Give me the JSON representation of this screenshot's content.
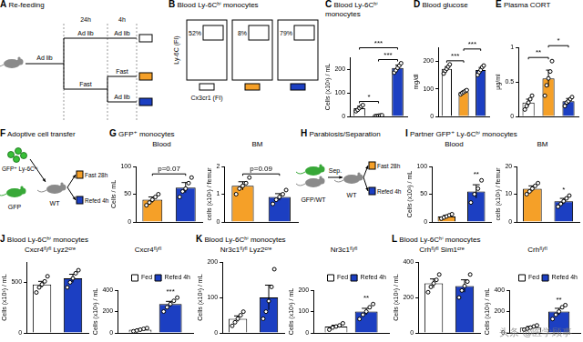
{
  "diagrams": {
    "A": {
      "panel": "A",
      "title": "Re-feeding",
      "times": [
        "24h",
        "4h"
      ],
      "start": "Ad lib",
      "branches": [
        {
          "label": "Ad lib",
          "next": [
            {
              "label": "Ad lib",
              "color": "#ffffff"
            }
          ]
        },
        {
          "label": "Fast",
          "next": [
            {
              "label": "Fast",
              "color": "#f5a028"
            },
            {
              "label": "Ad lib",
              "color": "#1c3fc2"
            }
          ]
        }
      ]
    },
    "B": {
      "panel": "B",
      "title": "Blood Ly-6Cʰⁱ monocytes",
      "y_label": "Ly-6C (FI)",
      "x_label": "Cx3cr1 (FI)",
      "gates": [
        {
          "text": "52%",
          "color": "#ffffff"
        },
        {
          "text": "8%",
          "color": "#f5a028"
        },
        {
          "text": "79%",
          "color": "#1c3fc2"
        }
      ]
    },
    "F": {
      "panel": "F",
      "title": "Adoptive cell transfer",
      "cells": "GFP⁺ Ly-6Cʰⁱ",
      "donor": "GFP",
      "recipient": "WT",
      "arms": [
        {
          "text": "Fast 28h",
          "color": "#f5a028"
        },
        {
          "text": "Refed 4h",
          "color": "#1c3fc2"
        }
      ]
    },
    "H": {
      "panel": "H",
      "title": "Parabiosis/Separation",
      "step": "Sep.",
      "left": "GFP/WT",
      "right": "WT",
      "arms": [
        {
          "text": "Fast 28h",
          "color": "#f5a028"
        },
        {
          "text": "Refed 4h",
          "color": "#1c3fc2"
        }
      ]
    },
    "watermark": "头条 @医学顾事"
  },
  "chart_data": [
    {
      "panel": "C",
      "type": "bar",
      "title": "Blood Ly-6Cʰⁱ monocytes",
      "y_label": "Cells (x10³) / mL",
      "categories": [
        null,
        null,
        null
      ],
      "values": [
        35,
        3,
        205
      ],
      "errors": [
        8,
        1,
        12
      ],
      "points": [
        [
          22,
          28,
          35,
          42,
          48
        ],
        [
          1,
          2,
          3,
          4,
          5
        ],
        [
          185,
          195,
          205,
          215,
          225
        ]
      ],
      "colors": [
        "#ffffff",
        "#f5a028",
        "#1c3fc2"
      ],
      "ylim": [
        0,
        250
      ],
      "yticks": [
        0,
        100,
        200
      ],
      "tick_labels": "y",
      "annotations": [
        {
          "text": "*",
          "between": [
            0,
            1
          ]
        },
        {
          "text": "***",
          "between": [
            1,
            2
          ]
        },
        {
          "text": "***",
          "between": [
            0,
            2
          ]
        }
      ]
    },
    {
      "panel": "D",
      "type": "bar",
      "title": "Blood glucose",
      "y_label": "mg/dl",
      "categories": [
        null,
        null,
        null
      ],
      "values": [
        172,
        88,
        168
      ],
      "errors": [
        8,
        4,
        9
      ],
      "points": [
        [
          155,
          165,
          172,
          180,
          188
        ],
        [
          80,
          85,
          88,
          92,
          95
        ],
        [
          150,
          160,
          168,
          178,
          184
        ]
      ],
      "colors": [
        "#ffffff",
        "#f5a028",
        "#1c3fc2"
      ],
      "ylim": [
        0,
        250
      ],
      "yticks": [
        0,
        100,
        200
      ],
      "tick_labels": "y",
      "annotations": [
        {
          "text": "***",
          "between": [
            0,
            1
          ]
        },
        {
          "text": "***",
          "between": [
            1,
            2
          ]
        }
      ]
    },
    {
      "panel": "E",
      "type": "bar",
      "title": "Plasma CORT",
      "y_label": "μg/ml",
      "categories": [
        null,
        null,
        null
      ],
      "values": [
        0.2,
        0.55,
        0.22
      ],
      "errors": [
        0.05,
        0.12,
        0.04
      ],
      "points": [
        [
          0.1,
          0.15,
          0.2,
          0.25,
          0.3
        ],
        [
          0.3,
          0.45,
          0.55,
          0.65,
          0.8
        ],
        [
          0.15,
          0.2,
          0.22,
          0.25,
          0.28
        ]
      ],
      "colors": [
        "#ffffff",
        "#f5a028",
        "#1c3fc2"
      ],
      "ylim": [
        0,
        1
      ],
      "yticks": [
        0,
        0.5,
        1
      ],
      "tick_labels": "y",
      "annotations": [
        {
          "text": "**",
          "between": [
            0,
            1
          ]
        },
        {
          "text": "*",
          "between": [
            1,
            2
          ]
        }
      ]
    },
    {
      "panel": "G",
      "suptitle": "GFP⁺ monocytes",
      "type": "bar",
      "title": "Blood",
      "y_label": "Cells / mL",
      "categories": [
        null,
        null
      ],
      "values": [
        40,
        62
      ],
      "errors": [
        5,
        9
      ],
      "points": [
        [
          30,
          35,
          40,
          45,
          50
        ],
        [
          45,
          55,
          60,
          70,
          80
        ]
      ],
      "colors": [
        "#f5a028",
        "#1c3fc2"
      ],
      "ylim": [
        0,
        100
      ],
      "yticks": [
        0,
        50,
        100
      ],
      "tick_labels": "y",
      "annotations": [
        {
          "text": "p=0.07",
          "between": [
            0,
            1
          ]
        }
      ]
    },
    {
      "type": "bar",
      "title": "BM",
      "y_label": "cells (x10³) / femur",
      "categories": [
        null,
        null
      ],
      "values": [
        1.3,
        0.9
      ],
      "errors": [
        0.15,
        0.12
      ],
      "points": [
        [
          1.0,
          1.2,
          1.3,
          1.4,
          1.6
        ],
        [
          0.65,
          0.8,
          0.9,
          1.0,
          1.15
        ]
      ],
      "colors": [
        "#f5a028",
        "#1c3fc2"
      ],
      "ylim": [
        0,
        2
      ],
      "yticks": [
        0,
        1,
        2
      ],
      "tick_labels": "y",
      "annotations": [
        {
          "text": "p=0.09",
          "between": [
            0,
            1
          ]
        }
      ]
    },
    {
      "panel": "I",
      "suptitle": "Partner GFP⁺ Ly-6Cʰⁱ monocytes",
      "type": "bar",
      "title": "Blood",
      "y_label": "Cells (x10³) / mL",
      "categories": [
        null,
        null
      ],
      "values": [
        10,
        55
      ],
      "errors": [
        2,
        12
      ],
      "points": [
        [
          6,
          8,
          10,
          12,
          14
        ],
        [
          35,
          50,
          60,
          75
        ]
      ],
      "colors": [
        "#f5a028",
        "#1c3fc2"
      ],
      "ylim": [
        0,
        100
      ],
      "yticks": [
        0,
        50,
        100
      ],
      "tick_labels": "y",
      "annotations": [
        {
          "text": "**",
          "between": [
            1,
            1
          ]
        }
      ]
    },
    {
      "type": "bar",
      "title": "BM",
      "y_label": "cells (x10³) / femur",
      "categories": [
        null,
        null
      ],
      "values": [
        12,
        7.5
      ],
      "errors": [
        1,
        1
      ],
      "points": [
        [
          10,
          11,
          12,
          13,
          14
        ],
        [
          5.5,
          6.5,
          7.5,
          8.5,
          9.5
        ]
      ],
      "colors": [
        "#f5a028",
        "#1c3fc2"
      ],
      "ylim": [
        0,
        20
      ],
      "yticks": [
        0,
        10,
        20
      ],
      "tick_labels": "y",
      "annotations": [
        {
          "text": "*",
          "between": [
            1,
            1
          ]
        }
      ]
    },
    {
      "panel": "J",
      "suptitle": "Blood Ly-6Cʰⁱ monocytes",
      "type": "bar",
      "title": "Cxcr4ᶠˡ/ᶠˡ Lyz2ᶜʳᵉ",
      "y_label": "Cells (x10³) / mL",
      "categories": [
        null,
        null
      ],
      "values": [
        480,
        540
      ],
      "errors": [
        30,
        40
      ],
      "points": [
        [
          400,
          450,
          480,
          510,
          560
        ],
        [
          450,
          500,
          540,
          590,
          620
        ]
      ],
      "colors": [
        "#ffffff",
        "#1c3fc2"
      ],
      "ylim": [
        0,
        700
      ],
      "yticks": [
        0,
        500
      ],
      "tick_labels": "y"
    },
    {
      "type": "bar",
      "title": "Cxcr4ᶠˡ/ᶠˡ",
      "y_label": "Cells (x10³) / mL",
      "categories": [
        null
      ],
      "series": [
        {
          "name": "Fed",
          "color": "#ffffff",
          "values": [
            30
          ],
          "errors": [
            8
          ],
          "points": [
            [
              15,
              22,
              30,
              38,
              45
            ]
          ]
        },
        {
          "name": "Refed 4h",
          "color": "#1c3fc2",
          "values": [
            270
          ],
          "errors": [
            25
          ],
          "points": [
            [
              200,
              240,
              270,
              300,
              330
            ]
          ]
        }
      ],
      "ylim": [
        0,
        400
      ],
      "yticks": [
        0,
        200,
        400
      ],
      "tick_labels": "y",
      "legend": "top-right",
      "annotations": [
        {
          "text": "***",
          "between": [
            1,
            1
          ]
        }
      ]
    },
    {
      "panel": "K",
      "suptitle": "Blood Ly-6Cʰⁱ monocytes",
      "type": "bar",
      "title": "Nr3c1ᶠˡ/ᶠˡ Lyz2ᶜʳᵉ",
      "y_label": "Cells (x10³) / mL",
      "categories": [
        null,
        null
      ],
      "values": [
        40,
        100
      ],
      "errors": [
        8,
        35
      ],
      "points": [
        [
          20,
          30,
          40,
          50,
          60
        ],
        [
          40,
          60,
          90,
          130,
          180
        ]
      ],
      "colors": [
        "#ffffff",
        "#1c3fc2"
      ],
      "ylim": [
        0,
        200
      ],
      "yticks": [
        0,
        100,
        200
      ],
      "tick_labels": "y"
    },
    {
      "type": "bar",
      "title": "Nr3c1ᶠˡ/ᶠˡ",
      "y_label": "Cells (x10³) / mL",
      "categories": [
        null
      ],
      "series": [
        {
          "name": "Fed",
          "color": "#ffffff",
          "values": [
            30
          ],
          "errors": [
            6
          ],
          "points": [
            [
              15,
              25,
              30,
              35,
              45
            ]
          ]
        },
        {
          "name": "Refed 4h",
          "color": "#1c3fc2",
          "values": [
            100
          ],
          "errors": [
            15
          ],
          "points": [
            [
              65,
              85,
              100,
              120,
              135
            ]
          ]
        }
      ],
      "ylim": [
        0,
        200
      ],
      "yticks": [
        0,
        100,
        200
      ],
      "tick_labels": "y",
      "legend": "top-right",
      "annotations": [
        {
          "text": "**",
          "between": [
            1,
            1
          ]
        }
      ]
    },
    {
      "panel": "L",
      "suptitle": "Blood Ly-6Cʰⁱ monocytes",
      "type": "bar",
      "title": "Crhᶠˡ/ᶠˡ Sim1ᶜʳᵉ",
      "y_label": "Cells (x10³) / mL",
      "categories": [
        null,
        null
      ],
      "values": [
        280,
        265
      ],
      "errors": [
        25,
        35
      ],
      "points": [
        [
          230,
          260,
          280,
          300,
          330
        ],
        [
          200,
          240,
          265,
          290,
          330
        ]
      ],
      "colors": [
        "#ffffff",
        "#1c3fc2"
      ],
      "ylim": [
        0,
        400
      ],
      "yticks": [
        0,
        200,
        400
      ],
      "tick_labels": "y"
    },
    {
      "type": "bar",
      "title": "Crhᶠˡ/ᶠˡ",
      "y_label": "Cells (x10³) / mL",
      "categories": [
        null
      ],
      "series": [
        {
          "name": "Fed",
          "color": "#ffffff",
          "values": [
            50
          ],
          "errors": [
            10
          ],
          "points": [
            [
              30,
              40,
              50,
              60,
              70
            ]
          ]
        },
        {
          "name": "Refed 4h",
          "color": "#1c3fc2",
          "values": [
            200
          ],
          "errors": [
            30
          ],
          "points": [
            [
              130,
              170,
              200,
              240,
              260
            ]
          ]
        }
      ],
      "ylim": [
        0,
        400
      ],
      "yticks": [
        0,
        200,
        400
      ],
      "tick_labels": "y",
      "legend": "top-right",
      "annotations": [
        {
          "text": "**",
          "between": [
            1,
            1
          ]
        }
      ]
    }
  ]
}
